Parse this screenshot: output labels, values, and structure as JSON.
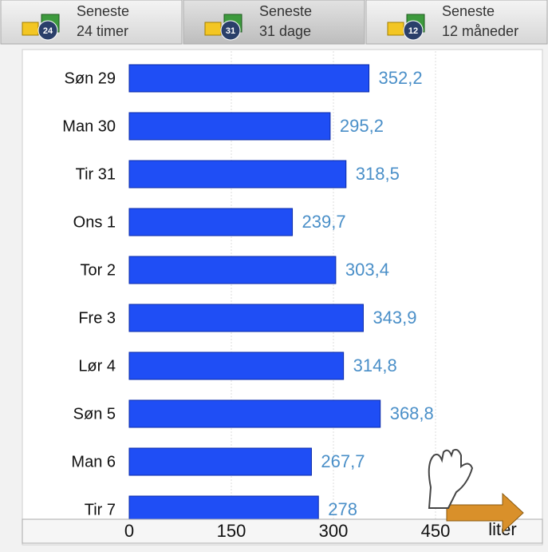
{
  "tabs": [
    {
      "icon": "24",
      "line1": "Seneste",
      "line2": "24 timer"
    },
    {
      "icon": "31",
      "line1": "Seneste",
      "line2": "31 dage"
    },
    {
      "icon": "12",
      "line1": "Seneste",
      "line2": "12 måneder"
    }
  ],
  "chart_data": {
    "type": "bar",
    "orientation": "horizontal",
    "categories": [
      "Søn 29",
      "Man 30",
      "Tir 31",
      "Ons 1",
      "Tor 2",
      "Fre 3",
      "Lør 4",
      "Søn 5",
      "Man 6",
      "Tir 7"
    ],
    "values": [
      352.2,
      295.2,
      318.5,
      239.7,
      303.4,
      343.9,
      314.8,
      368.8,
      267.7,
      278
    ],
    "value_labels": [
      "352,2",
      "295,2",
      "318,5",
      "239,7",
      "303,4",
      "343,9",
      "314,8",
      "368,8",
      "267,7",
      "278"
    ],
    "color": "#1f4ef5",
    "xlim": [
      0,
      600
    ],
    "xticks": [
      0,
      150,
      300,
      450
    ],
    "x_label": "liter",
    "grid": true
  }
}
